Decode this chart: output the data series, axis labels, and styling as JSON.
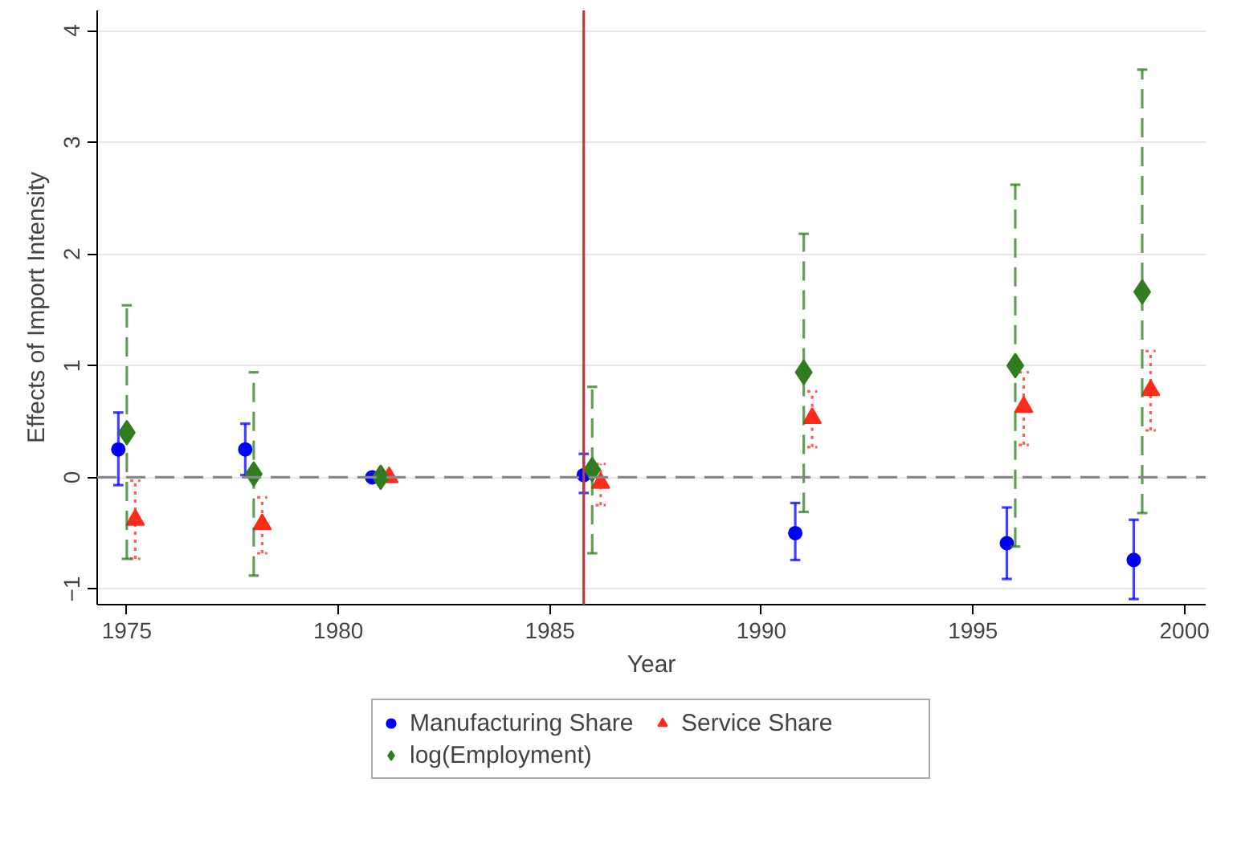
{
  "chart_data": {
    "type": "scatter",
    "xlabel": "Year",
    "ylabel": "Effects of Import Intensity",
    "series": [
      {
        "name": "Manufacturing Share",
        "color": "#0000ff",
        "marker": "circle",
        "line_style": "solid",
        "x": [
          1974.8,
          1977.8,
          1980.8,
          1985.8,
          1990.8,
          1995.8,
          1998.8
        ],
        "values": [
          0.25,
          0.25,
          0,
          0.02,
          -0.5,
          -0.59,
          -0.74
        ],
        "errors": [
          [
            -0.07,
            0.58
          ],
          [
            0.02,
            0.48
          ],
          null,
          [
            -0.14,
            0.21
          ],
          [
            -0.74,
            -0.23
          ],
          [
            -0.91,
            -0.27
          ],
          [
            -1.09,
            -0.38
          ]
        ]
      },
      {
        "name": "Service Share",
        "color": "#ff2a1a",
        "marker": "triangle",
        "line_style": "dotted",
        "x": [
          1975.2,
          1978.2,
          1981.2,
          1986.2,
          1991.2,
          1996.2,
          1999.2
        ],
        "values": [
          -0.38,
          -0.42,
          0,
          -0.05,
          0.53,
          0.63,
          0.78
        ],
        "errors": [
          [
            -0.73,
            -0.03
          ],
          [
            -0.68,
            -0.18
          ],
          null,
          [
            -0.25,
            0.12
          ],
          [
            0.27,
            0.77
          ],
          [
            0.29,
            0.94
          ],
          [
            0.42,
            1.13
          ]
        ]
      },
      {
        "name": "log(Employment)",
        "color": "#2f7d1f",
        "marker": "diamond",
        "line_style": "dashed",
        "x": [
          1975,
          1978,
          1981,
          1986,
          1991,
          1996,
          1999
        ],
        "values": [
          0.4,
          0.03,
          0,
          0.07,
          0.94,
          1.0,
          1.66
        ],
        "errors": [
          [
            -0.73,
            1.54
          ],
          [
            -0.88,
            0.94
          ],
          null,
          [
            -0.68,
            0.81
          ],
          [
            -0.31,
            2.18
          ],
          [
            -0.62,
            2.62
          ],
          [
            -0.32,
            3.65
          ]
        ]
      }
    ],
    "xlim": [
      1974.3,
      2000.5
    ],
    "xticks": [
      1975,
      1980,
      1985,
      1990,
      1995,
      2000
    ],
    "ylim": [
      -1.14,
      4.18
    ],
    "yticks": [
      -1,
      0,
      1,
      2,
      3,
      4
    ],
    "ref_lines": [
      {
        "axis": "y",
        "value": 0,
        "label": null,
        "color": "#888888",
        "line_style": "dashed"
      },
      {
        "axis": "x",
        "value": 1985.8,
        "label": null,
        "color": "#c0393b",
        "line_style": "solid"
      }
    ],
    "grid": "y",
    "legend": "bottom"
  }
}
